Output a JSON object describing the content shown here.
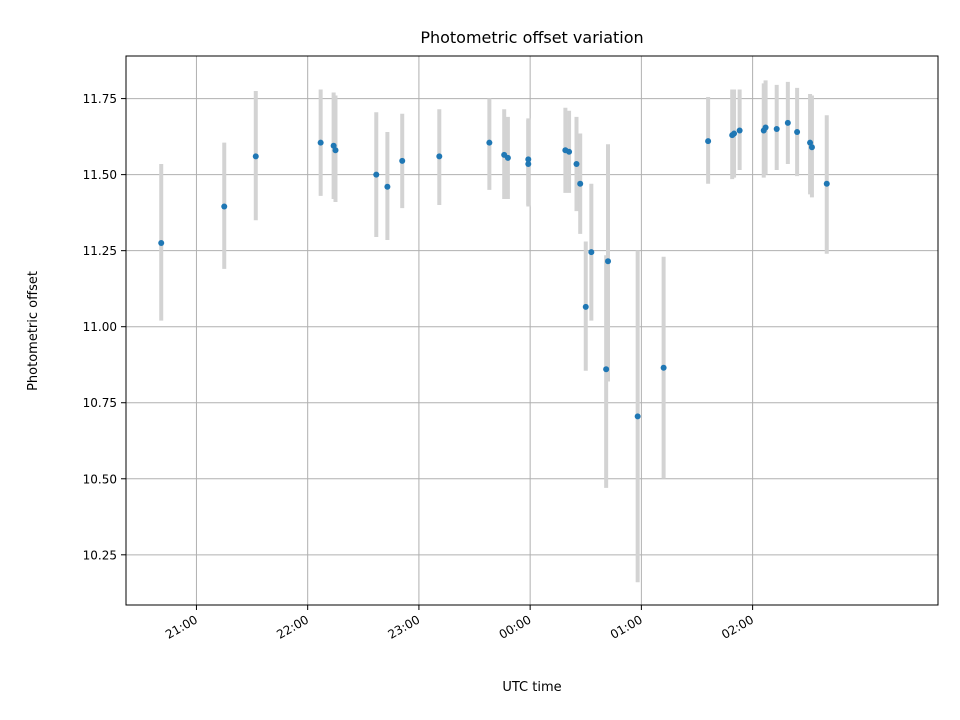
{
  "chart_data": {
    "type": "scatter",
    "title": "Photometric offset variation",
    "xlabel": "UTC time",
    "ylabel": "Photometric offset",
    "x_axis_kind": "time (HH:MM, UTC)",
    "xlim": [
      "20:22",
      "03:40"
    ],
    "ylim": [
      10.085,
      11.89
    ],
    "grid": true,
    "x_tick_labels": [
      "21:00",
      "22:00",
      "23:00",
      "00:00",
      "01:00",
      "02:00"
    ],
    "y_tick_values": [
      10.25,
      10.5,
      10.75,
      11.0,
      11.25,
      11.5,
      11.75
    ],
    "y_tick_labels": [
      "10.25",
      "10.50",
      "10.75",
      "11.00",
      "11.25",
      "11.50",
      "11.75"
    ],
    "colors": {
      "point": "#1f77b4",
      "errorbar": "#d3d3d3",
      "grid": "#b0b0b0",
      "axes": "#000000"
    },
    "series": [
      {
        "points": [
          {
            "t": "20:41",
            "y": 11.275,
            "lo": 11.02,
            "hi": 11.535
          },
          {
            "t": "21:15",
            "y": 11.395,
            "lo": 11.19,
            "hi": 11.605
          },
          {
            "t": "21:32",
            "y": 11.56,
            "lo": 11.35,
            "hi": 11.775
          },
          {
            "t": "22:07",
            "y": 11.605,
            "lo": 11.43,
            "hi": 11.78
          },
          {
            "t": "22:14",
            "y": 11.595,
            "lo": 11.42,
            "hi": 11.77
          },
          {
            "t": "22:15",
            "y": 11.58,
            "lo": 11.41,
            "hi": 11.76
          },
          {
            "t": "22:37",
            "y": 11.5,
            "lo": 11.295,
            "hi": 11.705
          },
          {
            "t": "22:43",
            "y": 11.46,
            "lo": 11.285,
            "hi": 11.64
          },
          {
            "t": "22:51",
            "y": 11.545,
            "lo": 11.39,
            "hi": 11.7
          },
          {
            "t": "23:11",
            "y": 11.56,
            "lo": 11.4,
            "hi": 11.715
          },
          {
            "t": "23:38",
            "y": 11.605,
            "lo": 11.45,
            "hi": 11.75
          },
          {
            "t": "23:46",
            "y": 11.565,
            "lo": 11.42,
            "hi": 11.715
          },
          {
            "t": "23:48",
            "y": 11.555,
            "lo": 11.42,
            "hi": 11.69
          },
          {
            "t": "23:59",
            "y": 11.55,
            "lo": 11.4,
            "hi": 11.685
          },
          {
            "t": "23:59",
            "y": 11.535,
            "lo": 11.395,
            "hi": 11.68
          },
          {
            "t": "00:19",
            "y": 11.58,
            "lo": 11.44,
            "hi": 11.72
          },
          {
            "t": "00:21",
            "y": 11.575,
            "lo": 11.44,
            "hi": 11.71
          },
          {
            "t": "00:25",
            "y": 11.535,
            "lo": 11.38,
            "hi": 11.69
          },
          {
            "t": "00:27",
            "y": 11.47,
            "lo": 11.305,
            "hi": 11.635
          },
          {
            "t": "00:30",
            "y": 11.065,
            "lo": 10.855,
            "hi": 11.28
          },
          {
            "t": "00:33",
            "y": 11.245,
            "lo": 11.02,
            "hi": 11.47
          },
          {
            "t": "00:41",
            "y": 10.86,
            "lo": 10.47,
            "hi": 11.235
          },
          {
            "t": "00:42",
            "y": 11.215,
            "lo": 10.82,
            "hi": 11.6
          },
          {
            "t": "00:58",
            "y": 10.705,
            "lo": 10.16,
            "hi": 11.25
          },
          {
            "t": "01:12",
            "y": 10.865,
            "lo": 10.5,
            "hi": 11.23
          },
          {
            "t": "01:36",
            "y": 11.61,
            "lo": 11.47,
            "hi": 11.755
          },
          {
            "t": "01:49",
            "y": 11.63,
            "lo": 11.485,
            "hi": 11.78
          },
          {
            "t": "01:50",
            "y": 11.635,
            "lo": 11.49,
            "hi": 11.78
          },
          {
            "t": "01:53",
            "y": 11.645,
            "lo": 11.515,
            "hi": 11.78
          },
          {
            "t": "02:06",
            "y": 11.645,
            "lo": 11.49,
            "hi": 11.8
          },
          {
            "t": "02:07",
            "y": 11.655,
            "lo": 11.5,
            "hi": 11.81
          },
          {
            "t": "02:13",
            "y": 11.65,
            "lo": 11.515,
            "hi": 11.795
          },
          {
            "t": "02:19",
            "y": 11.67,
            "lo": 11.535,
            "hi": 11.805
          },
          {
            "t": "02:24",
            "y": 11.64,
            "lo": 11.495,
            "hi": 11.785
          },
          {
            "t": "02:31",
            "y": 11.605,
            "lo": 11.435,
            "hi": 11.765
          },
          {
            "t": "02:32",
            "y": 11.59,
            "lo": 11.425,
            "hi": 11.76
          },
          {
            "t": "02:40",
            "y": 11.47,
            "lo": 11.24,
            "hi": 11.695
          }
        ]
      }
    ]
  }
}
